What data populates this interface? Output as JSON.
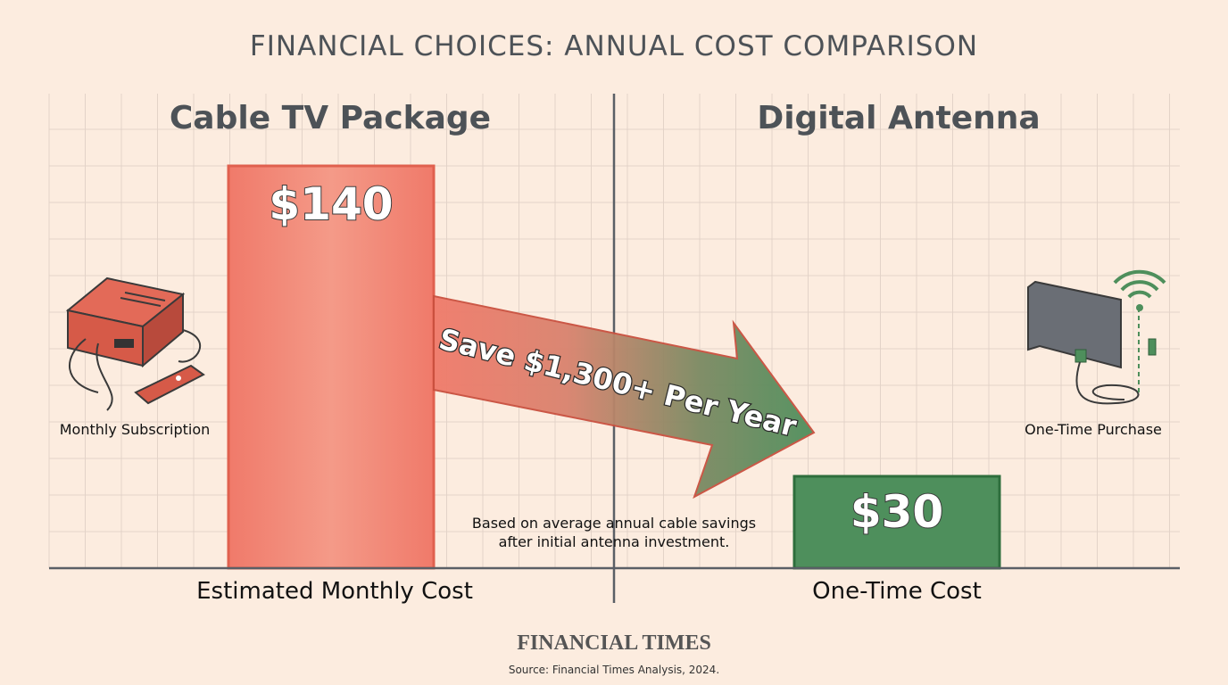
{
  "chart_data": {
    "type": "bar",
    "title": "FINANCIAL CHOICES: ANNUAL COST COMPARISON",
    "categories": [
      "Cable TV Package",
      "Digital Antenna"
    ],
    "values": [
      140,
      30
    ],
    "value_labels": [
      "$140",
      "$30"
    ],
    "xlabels": [
      "Estimated Monthly Cost",
      "One-Time Cost"
    ],
    "colors": {
      "cable": "#f08070",
      "antenna": "#4e8f5c",
      "grid": "#e3d3c8",
      "axis": "#5a5f66"
    },
    "grid": true,
    "annotation": {
      "arrow_text": "Save $1,300+ Per Year",
      "note": [
        "Based on average annual cable savings",
        "after initial antenna investment."
      ]
    },
    "icon_labels": [
      "Monthly Subscription",
      "One-Time Purchase"
    ],
    "icons": [
      "cable-box-icon",
      "digital-antenna-icon"
    ]
  },
  "footer": {
    "brand": "FINANCIAL TIMES",
    "source": "Source: Financial Times Analysis, 2024."
  }
}
